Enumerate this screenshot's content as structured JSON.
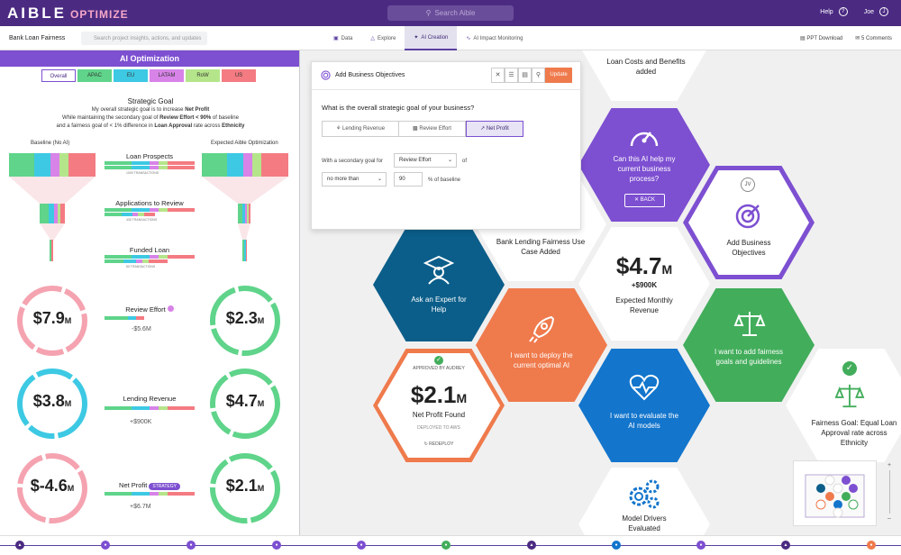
{
  "app": {
    "logo_main": "AIBLE",
    "logo_sub": "OPTIMIZE",
    "search_placeholder": "Search Aible",
    "help": "Help",
    "user": "Joe",
    "user_initial": "J"
  },
  "subbar": {
    "project": "Bank Loan Fairness",
    "search_placeholder": "Search project insights, actions, and updates",
    "tabs": [
      "Data",
      "Explore",
      "AI Creation",
      "AI Impact Monitoring"
    ],
    "ppt": "PPT Download",
    "comments": "5 Comments"
  },
  "left": {
    "title": "AI Optimization",
    "regions": [
      "Overall",
      "APAC",
      "EU",
      "LATAM",
      "RoW",
      "US"
    ],
    "goal_title": "Strategic Goal",
    "goal_line1_a": "My overall strategic goal is to increase ",
    "goal_line1_b": "Net Profit",
    "goal_line2_a": "While maintaining the secondary goal of ",
    "goal_line2_b": "Review Effort < 90%",
    "goal_line2_c": " of baseline",
    "goal_line3_a": "and a fairness goal of < 1% difference in ",
    "goal_line3_b": "Loan Approval",
    "goal_line3_c": " rate across ",
    "goal_line3_d": "Ethnicity",
    "baseline": "Baseline (No AI)",
    "expected": "Expected Aible Optimization",
    "stage1": "Loan Prospects",
    "stage1_n": "1000 TRANSACTIONS",
    "stage2": "Applications to Review",
    "stage2_n": "430 TRANSACTIONS",
    "stage3": "Funded Loan",
    "stage3_n": "50 TRANSACTIONS",
    "m1": {
      "label": "Review Effort",
      "delta": "-$5.6M",
      "base": "$7.9",
      "base_unit": "M",
      "exp": "$2.3",
      "exp_unit": "M"
    },
    "m2": {
      "label": "Lending Revenue",
      "delta": "+$900K",
      "base": "$3.8",
      "base_unit": "M",
      "exp": "$4.7",
      "exp_unit": "M"
    },
    "m3": {
      "label": "Net Profit",
      "badge": "STRATEGY",
      "delta": "+$6.7M",
      "base": "$-4.6",
      "base_unit": "M",
      "exp": "$2.1",
      "exp_unit": "M"
    }
  },
  "modal": {
    "title": "Add Business Objectives",
    "update": "Update",
    "question": "What is the overall strategic goal of your business?",
    "options": [
      "Lending Revenue",
      "Review Effort",
      "Net Profit"
    ],
    "secondary_label": "With a secondary goal for",
    "secondary_value": "Review Effort",
    "of": "of",
    "comparator": "no more than",
    "threshold": "90",
    "pct": "% of baseline"
  },
  "hex": {
    "loan_costs": "Loan Costs and Benefits added",
    "can_ai": "Can this AI help my current business process?",
    "back": "BACK",
    "add_obj": "Add Business Objectives",
    "jv": "JV",
    "bank_case": "Bank Lending Fairness Use Case Added",
    "ask": "Ask an Expert for Help",
    "rev_val": "$4.7",
    "rev_unit": "M",
    "rev_plus": "+$900K",
    "rev_label": "Expected Monthly Revenue",
    "deploy": "I want to deploy the current optimal AI",
    "fair": "I want to add fairness goals and guidelines",
    "approved": "APPROVED BY AUDREY",
    "np_val": "$2.1",
    "np_unit": "M",
    "np_label": "Net Profit Found",
    "deployed": "DEPLOYED TO AWS",
    "redeploy": "REDEPLOY",
    "eval": "I want to evaluate the AI models",
    "fair_goal": "Fairness Goal: Equal Loan Approval rate across Ethnicity",
    "drivers": "Model Drivers Evaluated"
  },
  "colors": {
    "purple": "#4b2a82",
    "accent": "#7d4fd1",
    "blue": "#0b5e8a",
    "orange": "#ef7a4c",
    "green": "#42ad5b",
    "lightblue": "#1375cc"
  }
}
